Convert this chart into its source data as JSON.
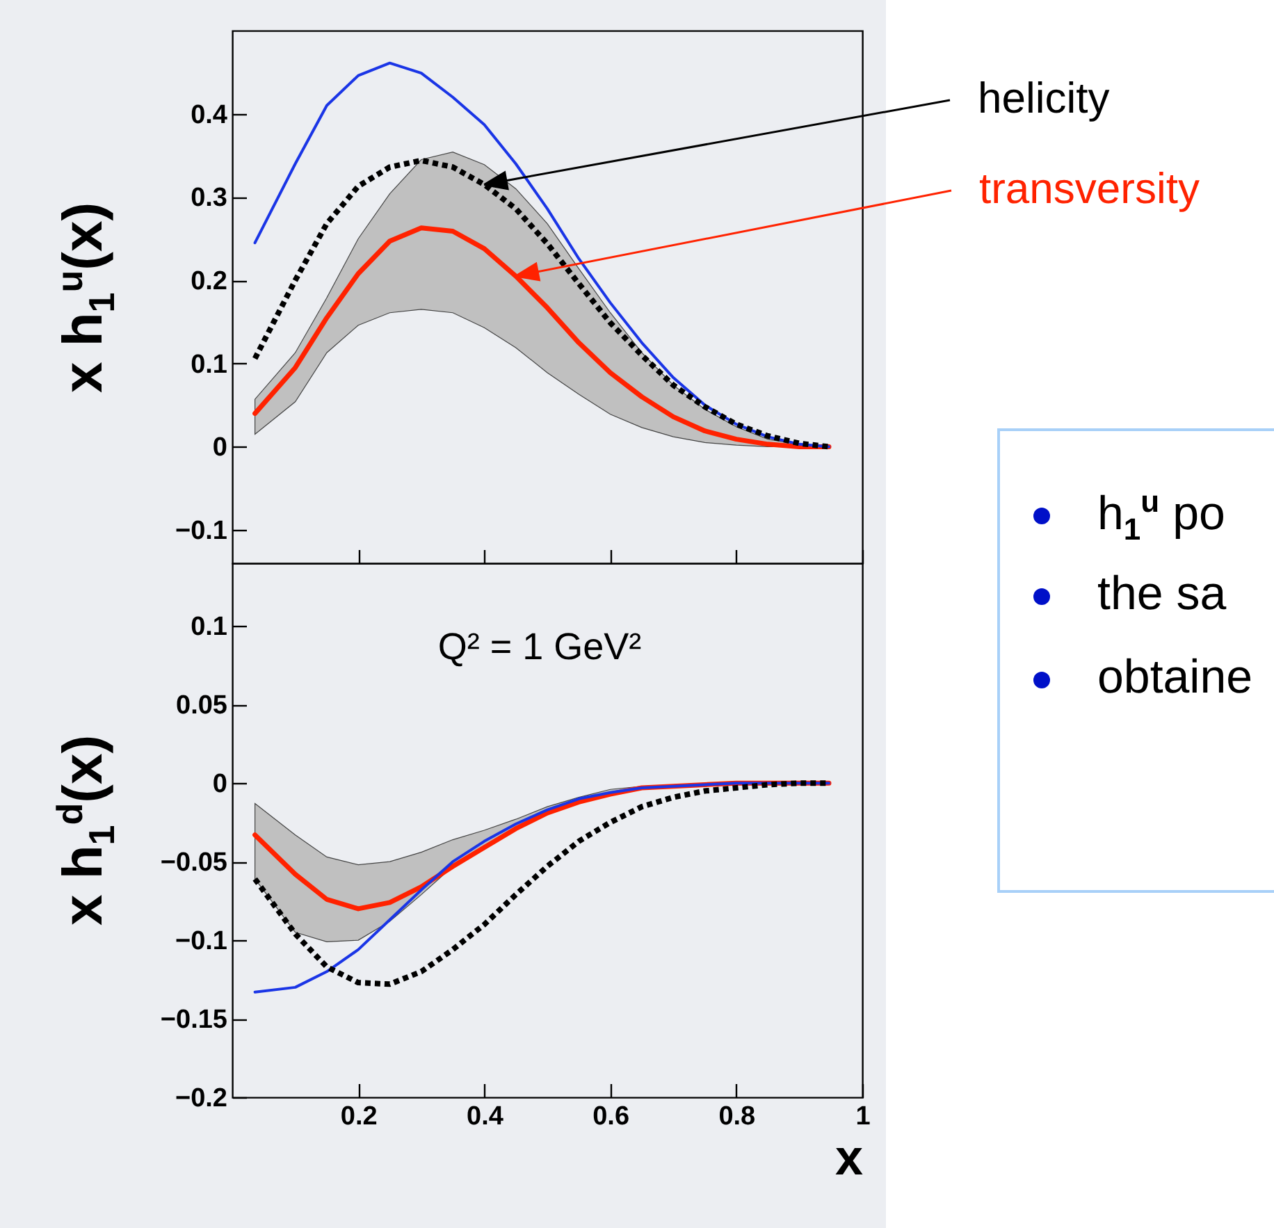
{
  "chart_data": [
    {
      "type": "line",
      "ylabel": "x h$_{1}$$^{u}$(x)",
      "tick_labels": "y",
      "xlim": [
        0,
        1
      ],
      "xticks": [
        0.2,
        0.4,
        0.6,
        0.8,
        1
      ],
      "ylim": [
        -0.14,
        0.5
      ],
      "yticks": [
        {
          "value": -0.1,
          "label": "−0.1"
        },
        0,
        0.1,
        0.2,
        0.3,
        0.4
      ],
      "x": [
        0.036,
        0.1,
        0.15,
        0.2,
        0.25,
        0.3,
        0.35,
        0.4,
        0.45,
        0.5,
        0.55,
        0.6,
        0.65,
        0.7,
        0.75,
        0.8,
        0.85,
        0.9,
        0.947
      ],
      "series": [
        {
          "color": "#1a35e6",
          "values": [
            0.245,
            0.34,
            0.41,
            0.446,
            0.461,
            0.449,
            0.42,
            0.387,
            0.34,
            0.286,
            0.226,
            0.173,
            0.125,
            0.083,
            0.05,
            0.027,
            0.012,
            0.003,
            0
          ]
        },
        {
          "name": "helicity",
          "color": "#000000",
          "line_style": "dotted",
          "values": [
            0.106,
            0.2,
            0.268,
            0.313,
            0.336,
            0.344,
            0.336,
            0.315,
            0.286,
            0.244,
            0.196,
            0.149,
            0.11,
            0.074,
            0.048,
            0.027,
            0.013,
            0.004,
            0
          ]
        },
        {
          "name": "transversity",
          "color": "#ff2200",
          "values": [
            0.04,
            0.095,
            0.155,
            0.208,
            0.247,
            0.263,
            0.259,
            0.238,
            0.205,
            0.167,
            0.125,
            0.089,
            0.06,
            0.036,
            0.019,
            0.009,
            0.003,
            0,
            0
          ],
          "lower": [
            0.015,
            0.054,
            0.113,
            0.146,
            0.161,
            0.165,
            0.161,
            0.143,
            0.119,
            0.089,
            0.063,
            0.039,
            0.023,
            0.012,
            0.005,
            0.002,
            0,
            0,
            0
          ],
          "upper": [
            0.057,
            0.113,
            0.179,
            0.25,
            0.304,
            0.345,
            0.354,
            0.339,
            0.31,
            0.268,
            0.214,
            0.161,
            0.113,
            0.074,
            0.045,
            0.024,
            0.009,
            0.003,
            0
          ]
        }
      ]
    },
    {
      "type": "line",
      "ylabel": "x h$_{1}$$^{d}$(x)",
      "xlabel": "x",
      "xlim": [
        0,
        1
      ],
      "xticks": [
        0.2,
        0.4,
        0.6,
        0.8,
        1
      ],
      "ylim": [
        -0.2,
        0.14
      ],
      "yticks": [
        {
          "value": -0.2,
          "label": "−0.2"
        },
        {
          "value": -0.15,
          "label": "−0.15"
        },
        {
          "value": -0.1,
          "label": "−0.1"
        },
        {
          "value": -0.05,
          "label": "−0.05"
        },
        0,
        0.05,
        0.1
      ],
      "annotations": [
        "Q² = 1 GeV²",
        "h$_{1}$$^{u}$ po",
        "the sa",
        "obtaine"
      ],
      "x": [
        0.036,
        0.1,
        0.15,
        0.2,
        0.25,
        0.3,
        0.35,
        0.4,
        0.45,
        0.5,
        0.55,
        0.6,
        0.65,
        0.7,
        0.75,
        0.8,
        0.85,
        0.9,
        0.947
      ],
      "series": [
        {
          "color": "#1a35e6",
          "values": [
            -0.133,
            -0.13,
            -0.12,
            -0.106,
            -0.087,
            -0.068,
            -0.05,
            -0.037,
            -0.026,
            -0.017,
            -0.01,
            -0.006,
            -0.003,
            -0.002,
            -0.001,
            0,
            0,
            0,
            0
          ]
        },
        {
          "color": "#000000",
          "line_style": "dotted",
          "values": [
            -0.061,
            -0.096,
            -0.117,
            -0.127,
            -0.128,
            -0.12,
            -0.106,
            -0.09,
            -0.071,
            -0.053,
            -0.037,
            -0.025,
            -0.015,
            -0.009,
            -0.005,
            -0.003,
            -0.001,
            0,
            0
          ]
        },
        {
          "color": "#ff2200",
          "values": [
            -0.033,
            -0.058,
            -0.074,
            -0.08,
            -0.076,
            -0.066,
            -0.053,
            -0.041,
            -0.029,
            -0.019,
            -0.012,
            -0.007,
            -0.003,
            -0.002,
            -0.001,
            0,
            0,
            0,
            0
          ],
          "lower": [
            -0.061,
            -0.095,
            -0.101,
            -0.1,
            -0.088,
            -0.071,
            -0.053,
            -0.041,
            -0.029,
            -0.019,
            -0.012,
            -0.007,
            -0.003,
            -0.002,
            -0.001,
            0,
            0,
            0,
            0
          ],
          "upper": [
            -0.013,
            -0.033,
            -0.047,
            -0.052,
            -0.05,
            -0.044,
            -0.036,
            -0.03,
            -0.023,
            -0.015,
            -0.009,
            -0.004,
            -0.002,
            -0.001,
            0,
            0,
            0,
            0,
            0
          ]
        }
      ]
    }
  ]
}
